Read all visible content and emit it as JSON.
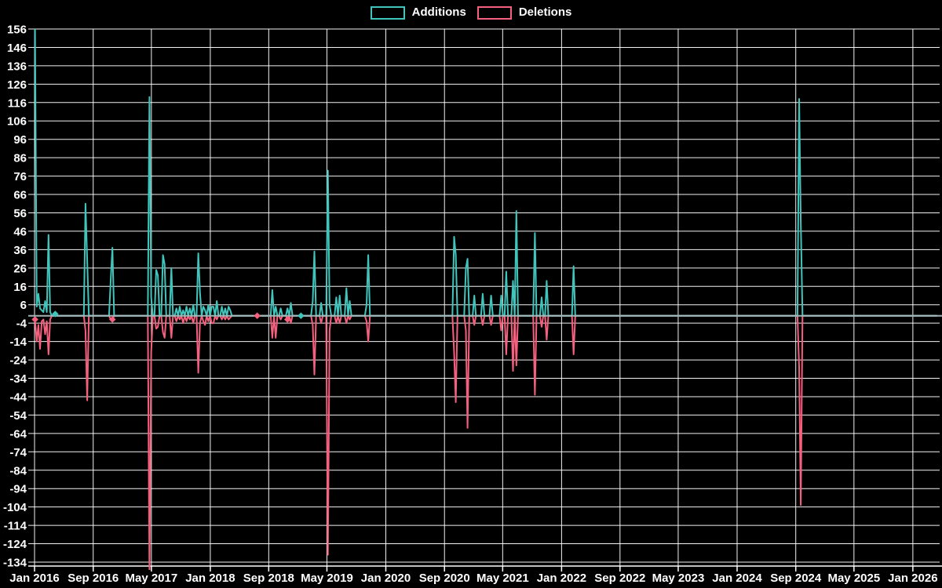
{
  "legend": {
    "additions_label": "Additions",
    "deletions_label": "Deletions"
  },
  "colors": {
    "background": "#000000",
    "additions": "#40c5bd",
    "deletions": "#f4607d",
    "gridline": "#ffffff",
    "zero_line": "#a9b7b9",
    "text": "#ffffff"
  },
  "chart_data": {
    "type": "line",
    "title": "",
    "xlabel": "",
    "ylabel": "",
    "legend_position": "top-center",
    "grid": true,
    "x_axis": {
      "data_start": "2016-01-03",
      "data_end": "2026-04-12",
      "tick_labels": [
        "Jan 2016",
        "Sep 2016",
        "May 2017",
        "Jan 2018",
        "Sep 2018",
        "May 2019",
        "Jan 2020",
        "Sep 2020",
        "May 2021",
        "Jan 2022",
        "Sep 2022",
        "May 2023",
        "Jan 2024",
        "Sep 2024",
        "May 2025",
        "Jan 2026"
      ],
      "tick_dates": [
        "2016-01-01",
        "2016-09-01",
        "2017-05-01",
        "2018-01-01",
        "2018-09-01",
        "2019-05-01",
        "2020-01-01",
        "2020-09-01",
        "2021-05-01",
        "2022-01-01",
        "2022-09-01",
        "2023-05-01",
        "2024-01-01",
        "2024-09-01",
        "2025-05-01",
        "2026-01-01"
      ]
    },
    "y_axis": {
      "min": -134,
      "max": 156,
      "tick_step": 10,
      "tick_labels": [
        "156",
        "146",
        "136",
        "126",
        "116",
        "106",
        "96",
        "86",
        "76",
        "66",
        "56",
        "46",
        "36",
        "26",
        "16",
        "6",
        "-4",
        "-14",
        "-24",
        "-34",
        "-44",
        "-54",
        "-64",
        "-74",
        "-84",
        "-94",
        "-104",
        "-114",
        "-124",
        "-134"
      ]
    },
    "series": [
      {
        "name": "Additions",
        "color": "#40c5bd"
      },
      {
        "name": "Deletions",
        "color": "#f4607d"
      }
    ],
    "baseline": 0,
    "weekly_points_format": [
      "week_start_date",
      "additions",
      "deletions"
    ],
    "weekly_points": [
      [
        "2016-01-03",
        156,
        -2
      ],
      [
        "2016-01-10",
        5,
        -14
      ],
      [
        "2016-01-17",
        12,
        -5
      ],
      [
        "2016-01-24",
        4,
        -18
      ],
      [
        "2016-01-31",
        3,
        -3
      ],
      [
        "2016-02-07",
        2,
        -2
      ],
      [
        "2016-02-14",
        8,
        -10
      ],
      [
        "2016-02-21",
        2,
        -3
      ],
      [
        "2016-02-28",
        44,
        -21
      ],
      [
        "2016-03-06",
        2,
        -2
      ],
      [
        "2016-03-27",
        1,
        0
      ],
      [
        "2016-07-31",
        61,
        -8
      ],
      [
        "2016-08-07",
        30,
        -46
      ],
      [
        "2016-11-13",
        20,
        -2
      ],
      [
        "2016-11-20",
        37,
        -2
      ],
      [
        "2017-04-23",
        119,
        -139
      ],
      [
        "2017-04-30",
        10,
        -20
      ],
      [
        "2017-05-21",
        25,
        -7
      ],
      [
        "2017-05-28",
        22,
        -6
      ],
      [
        "2017-06-18",
        33,
        -9
      ],
      [
        "2017-06-25",
        28,
        -12
      ],
      [
        "2017-07-23",
        26,
        -12
      ],
      [
        "2017-08-13",
        4,
        -3
      ],
      [
        "2017-08-27",
        5,
        -2
      ],
      [
        "2017-09-10",
        3,
        -4
      ],
      [
        "2017-09-24",
        5,
        -3
      ],
      [
        "2017-10-08",
        4,
        -2
      ],
      [
        "2017-10-22",
        6,
        -4
      ],
      [
        "2017-11-12",
        34,
        -31
      ],
      [
        "2017-11-19",
        13,
        -4
      ],
      [
        "2017-12-03",
        5,
        -3
      ],
      [
        "2017-12-10",
        3,
        -5
      ],
      [
        "2017-12-24",
        6,
        -3
      ],
      [
        "2018-01-07",
        5,
        -4
      ],
      [
        "2018-01-14",
        5,
        -4
      ],
      [
        "2018-01-28",
        8,
        -2
      ],
      [
        "2018-02-18",
        5,
        -2
      ],
      [
        "2018-03-04",
        4,
        -2
      ],
      [
        "2018-03-18",
        5,
        -2
      ],
      [
        "2018-03-25",
        3,
        -1
      ],
      [
        "2018-07-15",
        0,
        0
      ],
      [
        "2018-09-16",
        14,
        -12
      ],
      [
        "2018-09-30",
        5,
        -12
      ],
      [
        "2018-10-21",
        4,
        -2
      ],
      [
        "2018-11-18",
        4,
        -2
      ],
      [
        "2018-12-02",
        7,
        -4
      ],
      [
        "2019-01-13",
        0,
        0
      ],
      [
        "2019-03-03",
        8,
        -5
      ],
      [
        "2019-03-10",
        35,
        -32
      ],
      [
        "2019-04-07",
        7,
        -4
      ],
      [
        "2019-05-05",
        79,
        -130
      ],
      [
        "2019-05-12",
        6,
        -8
      ],
      [
        "2019-06-09",
        10,
        -4
      ],
      [
        "2019-06-23",
        11,
        -4
      ],
      [
        "2019-07-21",
        15,
        -4
      ],
      [
        "2019-08-04",
        8,
        -2
      ],
      [
        "2019-10-13",
        6,
        -3
      ],
      [
        "2019-10-20",
        33,
        -14
      ],
      [
        "2020-10-11",
        43,
        -20
      ],
      [
        "2020-10-18",
        33,
        -47
      ],
      [
        "2020-11-29",
        26,
        -8
      ],
      [
        "2020-12-06",
        31,
        -61
      ],
      [
        "2021-01-03",
        11,
        -5
      ],
      [
        "2021-02-07",
        12,
        -5
      ],
      [
        "2021-03-14",
        11,
        -5
      ],
      [
        "2021-04-25",
        11,
        -8
      ],
      [
        "2021-05-16",
        24,
        -21
      ],
      [
        "2021-06-13",
        19,
        -30
      ],
      [
        "2021-06-27",
        57,
        -27
      ],
      [
        "2021-09-12",
        45,
        -43
      ],
      [
        "2021-10-10",
        10,
        -6
      ],
      [
        "2021-10-31",
        19,
        -13
      ],
      [
        "2022-02-20",
        27,
        -21
      ],
      [
        "2024-09-15",
        118,
        -28
      ],
      [
        "2024-09-22",
        51,
        -103
      ]
    ],
    "markers": [
      {
        "date": "2016-01-03",
        "value": -2,
        "series": "deletions"
      },
      {
        "date": "2016-03-27",
        "value": 1,
        "series": "additions"
      },
      {
        "date": "2016-11-20",
        "value": -2,
        "series": "deletions"
      },
      {
        "date": "2018-07-15",
        "value": 0,
        "series": "deletions"
      },
      {
        "date": "2018-11-18",
        "value": -2,
        "series": "deletions"
      },
      {
        "date": "2019-01-13",
        "value": 0,
        "series": "additions"
      }
    ]
  }
}
